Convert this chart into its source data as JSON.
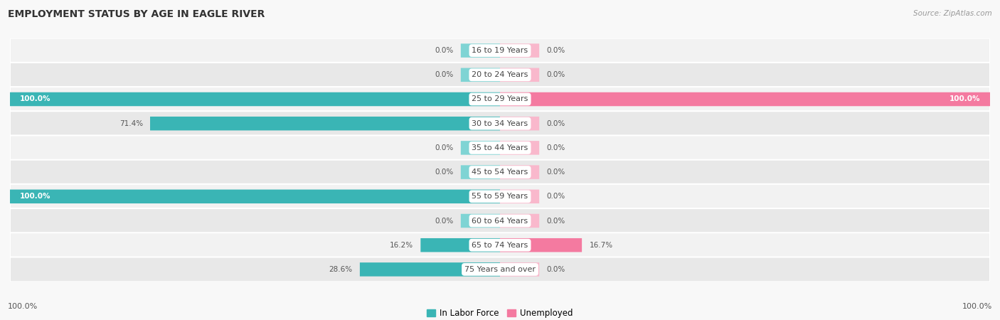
{
  "title": "EMPLOYMENT STATUS BY AGE IN EAGLE RIVER",
  "source": "Source: ZipAtlas.com",
  "categories": [
    "16 to 19 Years",
    "20 to 24 Years",
    "25 to 29 Years",
    "30 to 34 Years",
    "35 to 44 Years",
    "45 to 54 Years",
    "55 to 59 Years",
    "60 to 64 Years",
    "65 to 74 Years",
    "75 Years and over"
  ],
  "labor_force": [
    0.0,
    0.0,
    100.0,
    71.4,
    0.0,
    0.0,
    100.0,
    0.0,
    16.2,
    28.6
  ],
  "unemployed": [
    0.0,
    0.0,
    100.0,
    0.0,
    0.0,
    0.0,
    0.0,
    0.0,
    16.7,
    0.0
  ],
  "labor_force_color": "#3ab5b5",
  "unemployed_color": "#f47aa0",
  "labor_force_stub_color": "#7fd4d4",
  "unemployed_stub_color": "#f9b8cc",
  "row_bg_odd": "#f2f2f2",
  "row_bg_even": "#e8e8e8",
  "label_dark_color": "#555555",
  "white_text_color": "#ffffff",
  "title_color": "#333333",
  "source_color": "#999999",
  "center_label_bg": "#ffffff",
  "center_label_color": "#444444",
  "xlim": 100.0,
  "stub_size": 8.0,
  "legend_label_labor": "In Labor Force",
  "legend_label_unemployed": "Unemployed",
  "bottom_axis_left": "100.0%",
  "bottom_axis_right": "100.0%"
}
